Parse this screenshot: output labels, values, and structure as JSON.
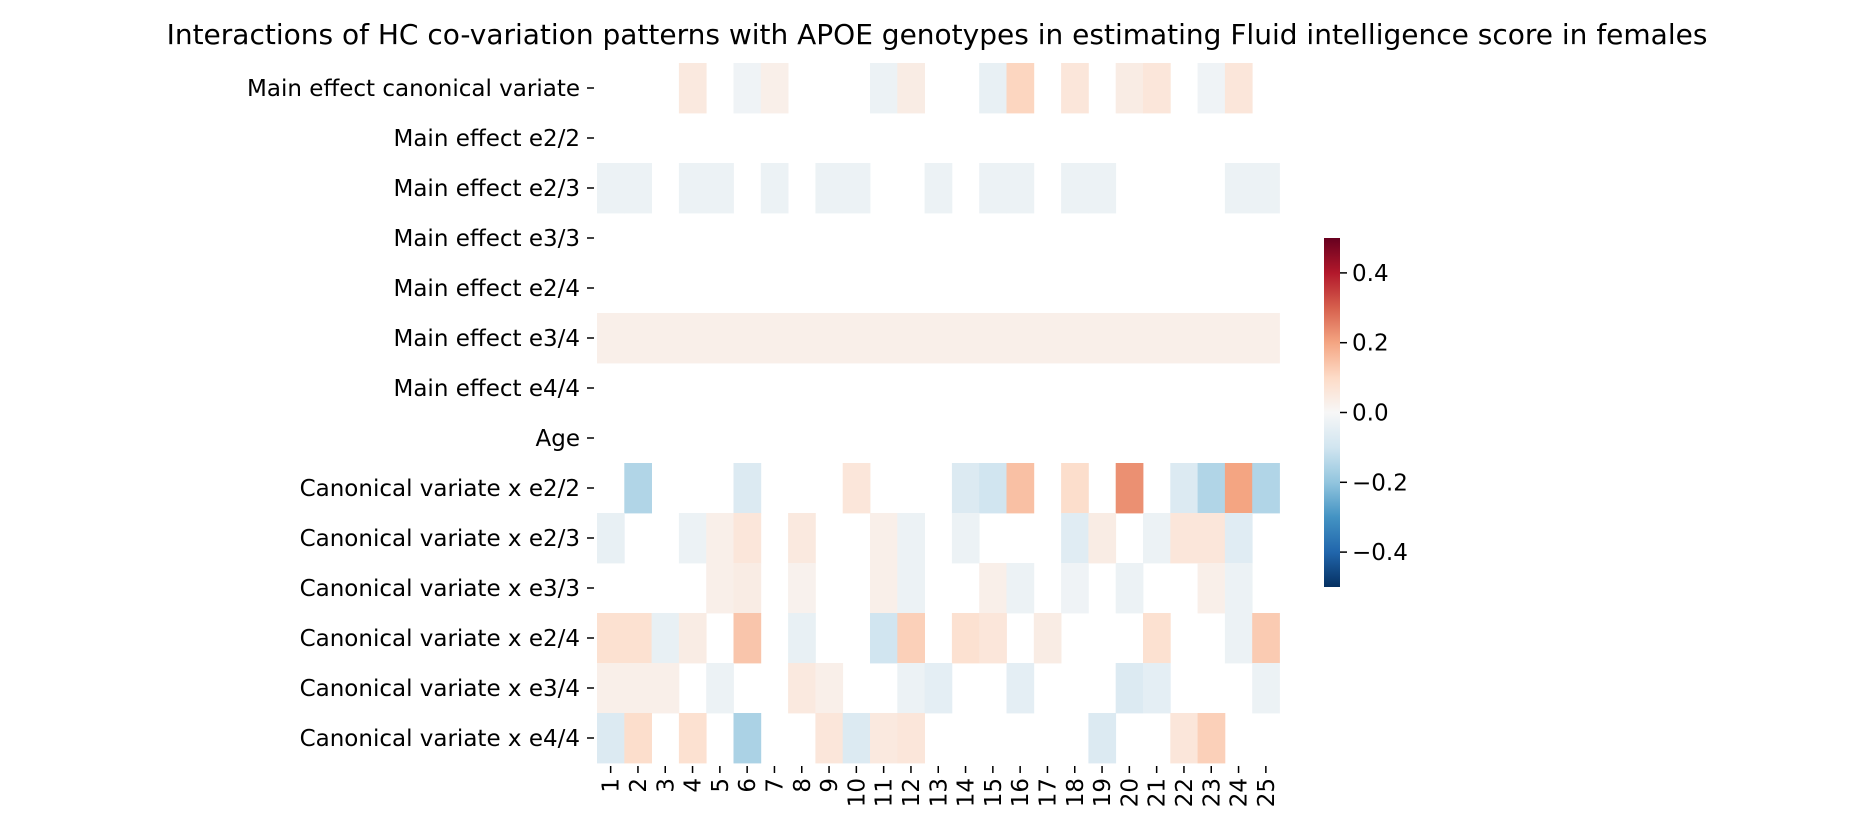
{
  "chart_data": {
    "type": "heatmap",
    "title": "Interactions of HC co-variation patterns with APOE genotypes in estimating Fluid intelligence score in females",
    "xlabel": "",
    "ylabel": "",
    "rows": [
      "Main effect canonical variate",
      "Main effect e2/2",
      "Main effect e2/3",
      "Main effect e3/3",
      "Main effect e2/4",
      "Main effect e3/4",
      "Main effect e4/4",
      "Age",
      "Canonical variate x e2/2",
      "Canonical variate x e2/3",
      "Canonical variate x e3/3",
      "Canonical variate x e2/4",
      "Canonical variate x e3/4",
      "Canonical variate x e4/4"
    ],
    "columns": [
      "1",
      "2",
      "3",
      "4",
      "5",
      "6",
      "7",
      "8",
      "9",
      "10",
      "11",
      "12",
      "13",
      "14",
      "15",
      "16",
      "17",
      "18",
      "19",
      "20",
      "21",
      "22",
      "23",
      "24",
      "25"
    ],
    "values": [
      [
        0,
        0,
        0,
        0.05,
        0,
        -0.02,
        0.03,
        0,
        0,
        0,
        -0.03,
        0.04,
        0,
        0,
        -0.04,
        0.11,
        0,
        0.06,
        0,
        0.04,
        0.06,
        0,
        -0.02,
        0.06,
        0
      ],
      [
        0,
        0,
        0,
        0,
        0,
        0,
        0,
        0,
        0,
        0,
        0,
        0,
        0,
        0,
        0,
        0,
        0,
        0,
        0,
        0,
        0,
        0,
        0,
        0,
        0
      ],
      [
        -0.03,
        -0.03,
        0,
        -0.03,
        -0.03,
        0,
        -0.03,
        0,
        -0.03,
        -0.03,
        0,
        0,
        -0.03,
        0,
        -0.03,
        -0.03,
        0,
        -0.03,
        -0.03,
        0,
        0,
        0,
        0,
        -0.03,
        -0.03
      ],
      [
        0,
        0,
        0,
        0,
        0,
        0,
        0,
        0,
        0,
        0,
        0,
        0,
        0,
        0,
        0,
        0,
        0,
        0,
        0,
        0,
        0,
        0,
        0,
        0,
        0
      ],
      [
        0,
        0,
        0,
        0,
        0,
        0,
        0,
        0,
        0,
        0,
        0,
        0,
        0,
        0,
        0,
        0,
        0,
        0,
        0,
        0,
        0,
        0,
        0,
        0,
        0
      ],
      [
        0.03,
        0.03,
        0.03,
        0.03,
        0.03,
        0.03,
        0.03,
        0.03,
        0.03,
        0.03,
        0.03,
        0.03,
        0.03,
        0.03,
        0.03,
        0.03,
        0.03,
        0.03,
        0.03,
        0.03,
        0.03,
        0.03,
        0.03,
        0.03,
        0.03
      ],
      [
        0,
        0,
        0,
        0,
        0,
        0,
        0,
        0,
        0,
        0,
        0,
        0,
        0,
        0,
        0,
        0,
        0,
        0,
        0,
        0,
        0,
        0,
        0,
        0,
        0
      ],
      [
        0,
        0,
        0,
        0,
        0,
        0,
        0,
        0,
        0,
        0,
        0,
        0,
        0,
        0,
        0,
        0,
        0,
        0,
        0,
        0,
        0,
        0,
        0,
        0,
        0
      ],
      [
        0,
        -0.15,
        0,
        0,
        0,
        -0.07,
        0,
        0,
        0,
        0.06,
        0,
        0,
        0,
        -0.07,
        -0.1,
        0.15,
        0,
        0.09,
        0,
        0.23,
        0,
        -0.07,
        -0.15,
        0.2,
        -0.15
      ],
      [
        -0.04,
        0,
        0,
        -0.03,
        0.03,
        0.06,
        0,
        0.05,
        0,
        0,
        0.03,
        -0.03,
        0,
        -0.03,
        0,
        0,
        0,
        -0.06,
        0.04,
        0,
        -0.03,
        0.06,
        0.06,
        -0.06,
        0
      ],
      [
        0,
        0,
        0,
        0,
        0.03,
        0.04,
        0,
        0.02,
        0,
        0,
        0.03,
        -0.03,
        0,
        0,
        0.03,
        -0.03,
        0,
        -0.02,
        0,
        -0.03,
        0,
        0,
        0.03,
        -0.03,
        0
      ],
      [
        0.08,
        0.08,
        -0.04,
        0.04,
        0,
        0.14,
        0,
        -0.04,
        0,
        0,
        -0.1,
        0.12,
        0,
        0.08,
        0.06,
        0,
        0.04,
        0,
        0,
        0,
        0.08,
        0,
        0,
        -0.03,
        0.13
      ],
      [
        0.03,
        0.03,
        0.03,
        0,
        -0.03,
        0,
        0,
        0.05,
        0.03,
        0,
        0,
        -0.03,
        -0.05,
        0,
        0,
        -0.05,
        0,
        0,
        0,
        -0.07,
        -0.05,
        0,
        0,
        0,
        -0.03
      ],
      [
        -0.07,
        0.09,
        0,
        0.08,
        0,
        -0.16,
        0,
        0,
        0.06,
        -0.07,
        0.05,
        0.06,
        0,
        0,
        0,
        0,
        0,
        0,
        -0.07,
        0,
        0,
        0.06,
        0.12,
        0,
        0
      ]
    ],
    "vmin": -0.5,
    "vmax": 0.5,
    "colormap": "RdBu_r",
    "colorbar_ticks": [
      0.4,
      0.2,
      0.0,
      -0.2,
      -0.4
    ],
    "colorbar_tick_labels": [
      "0.4",
      "0.2",
      "0.0",
      "−0.2",
      "−0.4"
    ],
    "grid": false,
    "legend": "colorbar-right"
  }
}
